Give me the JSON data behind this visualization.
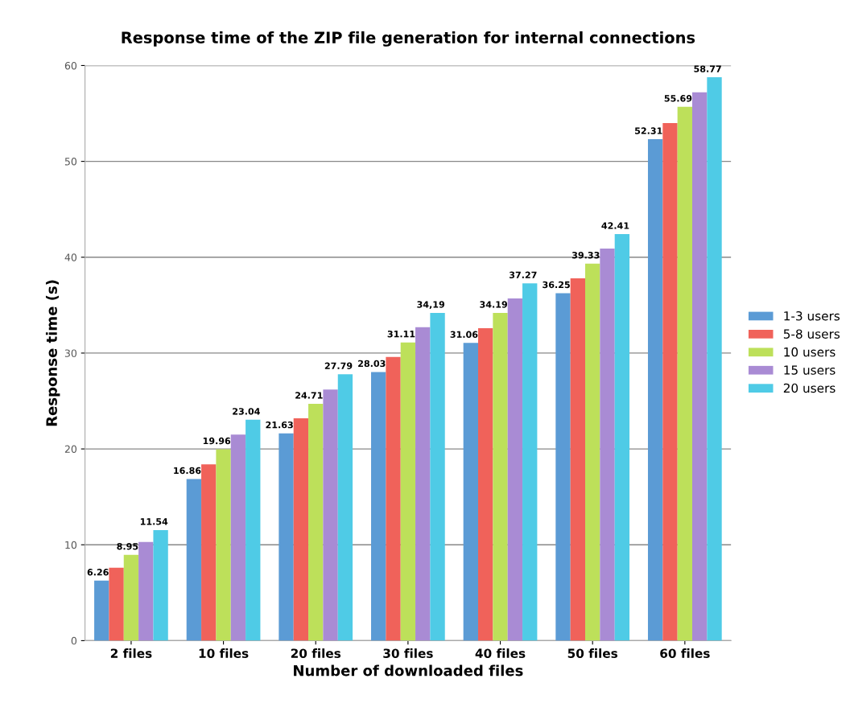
{
  "chart_data": {
    "type": "bar",
    "title": "Response time of the ZIP file generation for internal connections",
    "xlabel": "Number of downloaded files",
    "ylabel": "Response time (s)",
    "categories": [
      "2 files",
      "10 files",
      "20 files",
      "30 files",
      "40 files",
      "50 files",
      "60 files"
    ],
    "series": [
      {
        "name": "1-3 users",
        "color": "#5b9bd5",
        "values": [
          6.26,
          16.86,
          21.63,
          28.03,
          31.06,
          36.25,
          52.31
        ],
        "value_labels": [
          "6.26",
          "16.86",
          "21.63",
          "28.03",
          "31.06",
          "36.25",
          "52.31"
        ]
      },
      {
        "name": "5-8 users",
        "color": "#f0625a",
        "values": [
          7.6,
          18.4,
          23.2,
          29.6,
          32.6,
          37.8,
          54.0
        ]
      },
      {
        "name": "10 users",
        "color": "#bde05a",
        "values": [
          8.95,
          19.96,
          24.71,
          31.11,
          34.19,
          39.33,
          55.69
        ],
        "value_labels": [
          "8.95",
          "19.96",
          "24.71",
          "31.11",
          "34.19",
          "39.33",
          "55.69"
        ]
      },
      {
        "name": "15 users",
        "color": "#a98bd4",
        "values": [
          10.3,
          21.5,
          26.2,
          32.7,
          35.7,
          40.9,
          57.2
        ]
      },
      {
        "name": "20 users",
        "color": "#4fcbe6",
        "values": [
          11.54,
          23.04,
          27.79,
          34.19,
          37.27,
          42.41,
          58.77
        ],
        "value_labels": [
          "11.54",
          "23.04",
          "27.79",
          "34,19",
          "37.27",
          "42.41",
          "58.77"
        ]
      }
    ],
    "ylim": [
      0,
      60
    ],
    "yticks": [
      0,
      10,
      20,
      30,
      40,
      50,
      60
    ],
    "grid": "y",
    "legend": "right"
  }
}
